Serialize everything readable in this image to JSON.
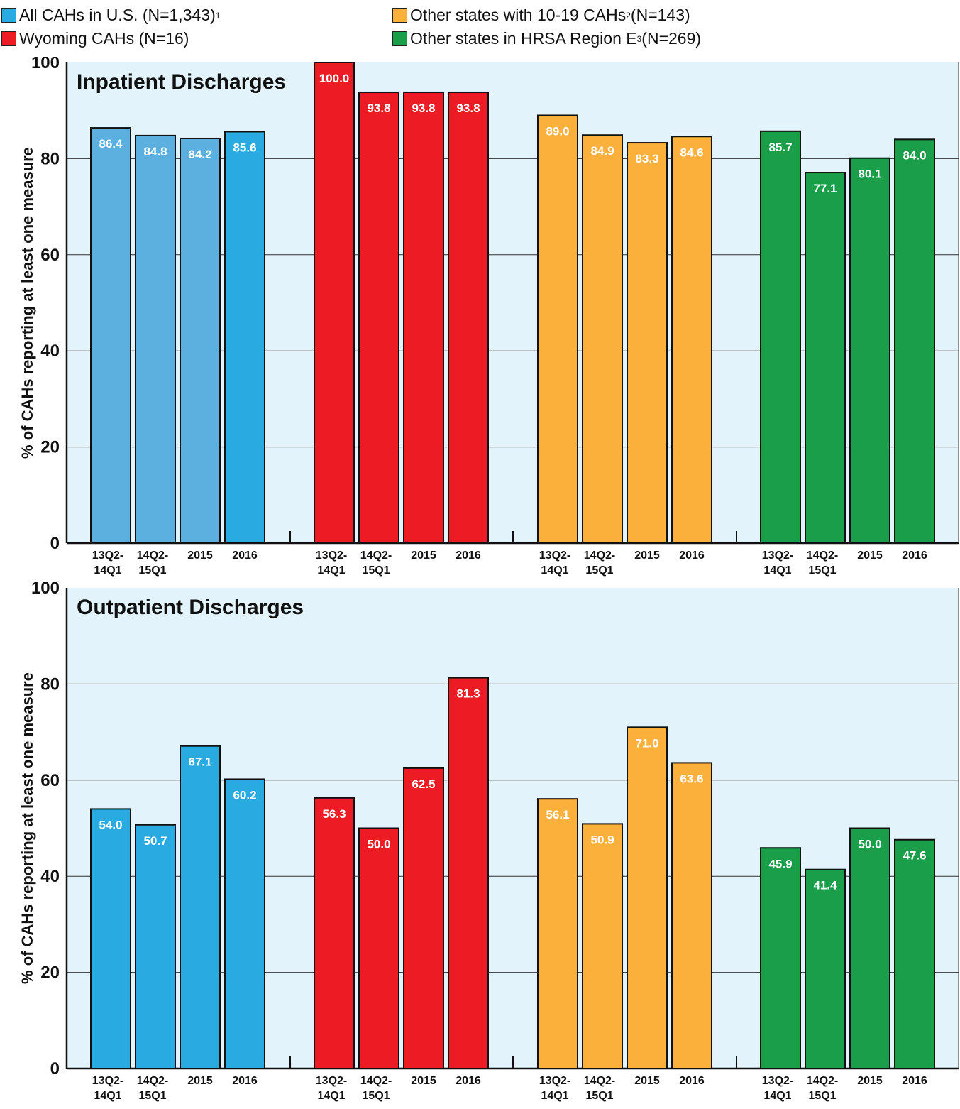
{
  "legend": {
    "items": [
      {
        "label": "All CAHs in U.S. (N=1,343)",
        "sup": "1",
        "color": "#29abe2"
      },
      {
        "label": "Wyoming CAHs (N=16)",
        "sup": "",
        "color": "#ed1c24"
      },
      {
        "label": "Other states with 10-19 CAHs",
        "sup": "2",
        "suffix": " (N=143)",
        "color": "#fbb03b"
      },
      {
        "label": "Other states in HRSA Region E",
        "sup": "3",
        "suffix": " (N=269)",
        "color": "#1a9e4a"
      }
    ]
  },
  "colors": {
    "background": "#e3f3fb",
    "us_first_two": "#5bb0e0",
    "us": "#29abe2",
    "wyoming": "#ed1c24",
    "other_states": "#fbb03b",
    "region_e": "#1a9e4a"
  },
  "chart_data": [
    {
      "type": "bar",
      "title": "Inpatient Discharges",
      "ylabel": "% of CAHs reporting at least one measure",
      "ylim": [
        0,
        100
      ],
      "yticks": [
        "0",
        "20",
        "40",
        "60",
        "80",
        "100"
      ],
      "grid": true,
      "categories": [
        "13Q2-\n14Q1",
        "14Q2-\n15Q1",
        "2015",
        "2016"
      ],
      "series": [
        {
          "name": "All CAHs in U.S. (N=1,343)",
          "values": [
            86.4,
            84.8,
            84.2,
            85.6
          ],
          "labels": [
            "86.4",
            "84.8",
            "84.2",
            "85.6"
          ]
        },
        {
          "name": "Wyoming CAHs (N=16)",
          "values": [
            100.0,
            93.8,
            93.8,
            93.8
          ],
          "labels": [
            "100.0",
            "93.8",
            "93.8",
            "93.8"
          ]
        },
        {
          "name": "Other states with 10-19 CAHs (N=143)",
          "values": [
            89.0,
            84.9,
            83.3,
            84.6
          ],
          "labels": [
            "89.0",
            "84.9",
            "83.3",
            "84.6"
          ]
        },
        {
          "name": "Other states in HRSA Region E (N=269)",
          "values": [
            85.7,
            77.1,
            80.1,
            84.0
          ],
          "labels": [
            "85.7",
            "77.1",
            "80.1",
            "84.0"
          ]
        }
      ]
    },
    {
      "type": "bar",
      "title": "Outpatient Discharges",
      "ylabel": "% of CAHs reporting at least one measure",
      "ylim": [
        0,
        100
      ],
      "yticks": [
        "0",
        "20",
        "40",
        "60",
        "80",
        "100"
      ],
      "grid": true,
      "categories": [
        "13Q2-\n14Q1",
        "14Q2-\n15Q1",
        "2015",
        "2016"
      ],
      "series": [
        {
          "name": "All CAHs in U.S. (N=1,343)",
          "values": [
            54.0,
            50.7,
            67.1,
            60.2
          ],
          "labels": [
            "54.0",
            "50.7",
            "67.1",
            "60.2"
          ]
        },
        {
          "name": "Wyoming CAHs (N=16)",
          "values": [
            56.3,
            50.0,
            62.5,
            81.3
          ],
          "labels": [
            "56.3",
            "50.0",
            "62.5",
            "81.3"
          ]
        },
        {
          "name": "Other states with 10-19 CAHs (N=143)",
          "values": [
            56.1,
            50.9,
            71.0,
            63.6
          ],
          "labels": [
            "56.1",
            "50.9",
            "71.0",
            "63.6"
          ]
        },
        {
          "name": "Other states in HRSA Region E (N=269)",
          "values": [
            45.9,
            41.4,
            50.0,
            47.6
          ],
          "labels": [
            "45.9",
            "41.4",
            "50.0",
            "47.6"
          ]
        }
      ]
    }
  ]
}
